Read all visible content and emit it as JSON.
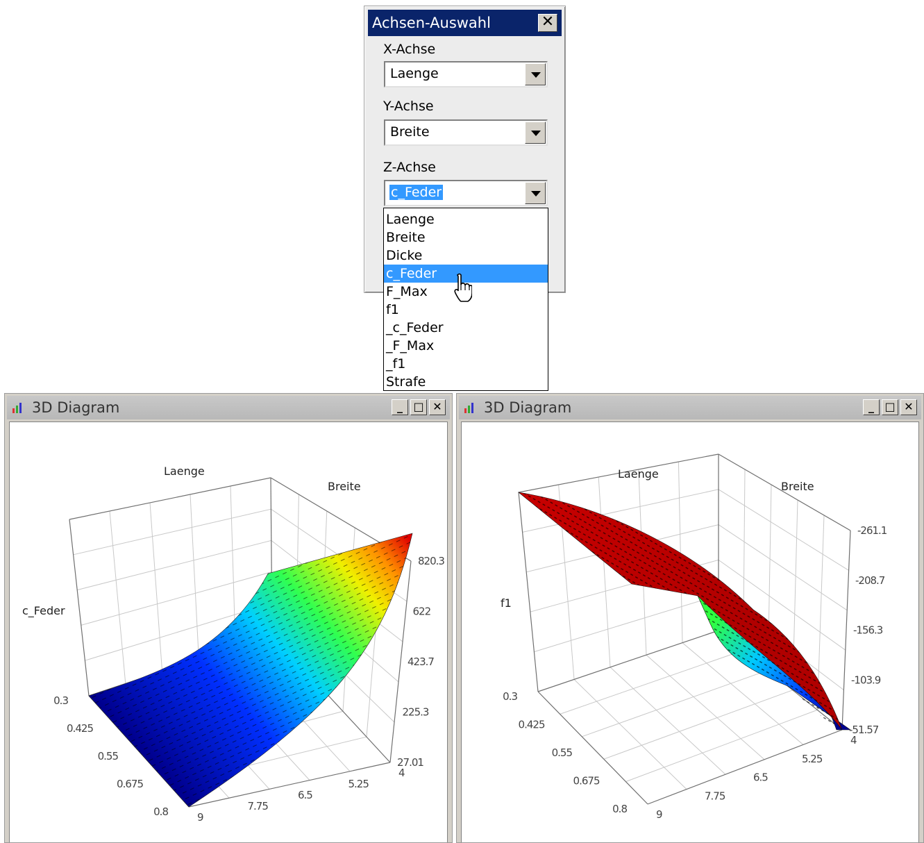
{
  "dialog": {
    "title": "Achsen-Auswahl",
    "close_glyph": "✕",
    "x_label": "X-Achse",
    "x_value": "Laenge",
    "y_label": "Y-Achse",
    "y_value": "Breite",
    "z_label": "Z-Achse",
    "z_value": "c_Feder",
    "options": [
      "Laenge",
      "Breite",
      "Dicke",
      "c_Feder",
      "F_Max",
      "f1",
      "_c_Feder",
      "_F_Max",
      "_f1",
      "Strafe"
    ],
    "highlighted": "c_Feder"
  },
  "window_left": {
    "title": "3D Diagram",
    "x_axis": "Laenge",
    "y_axis": "Breite",
    "z_axis": "c_Feder",
    "x_ticks": [
      "0.3",
      "0.425",
      "0.55",
      "0.675",
      "0.8"
    ],
    "y_ticks": [
      "9",
      "7.75",
      "6.5",
      "5.25",
      "4"
    ],
    "z_ticks": [
      "27.01",
      "225.3",
      "423.7",
      "622",
      "820.3"
    ]
  },
  "window_right": {
    "title": "3D Diagram",
    "x_axis": "Laenge",
    "y_axis": "Breite",
    "z_axis": "f1",
    "x_ticks": [
      "0.3",
      "0.425",
      "0.55",
      "0.675",
      "0.8"
    ],
    "y_ticks": [
      "9",
      "7.75",
      "6.5",
      "5.25",
      "4"
    ],
    "z_ticks": [
      "-261.1",
      "-208.7",
      "-156.3",
      "-103.9",
      "-51.57"
    ]
  },
  "chart_data": [
    {
      "type": "surface",
      "x": [
        0.3,
        0.425,
        0.55,
        0.675,
        0.8
      ],
      "y": [
        4,
        5.25,
        6.5,
        7.75,
        9
      ],
      "z_range": [
        27.01,
        820.3
      ],
      "xlabel": "Laenge",
      "ylabel": "Breite",
      "zlabel": "c_Feder",
      "colormap": "jet"
    },
    {
      "type": "surface",
      "x": [
        0.3,
        0.425,
        0.55,
        0.675,
        0.8
      ],
      "y": [
        4,
        5.25,
        6.5,
        7.75,
        9
      ],
      "z_range": [
        -261.1,
        -51.57
      ],
      "xlabel": "Laenge",
      "ylabel": "Breite",
      "zlabel": "f1",
      "colormap": "jet"
    }
  ]
}
